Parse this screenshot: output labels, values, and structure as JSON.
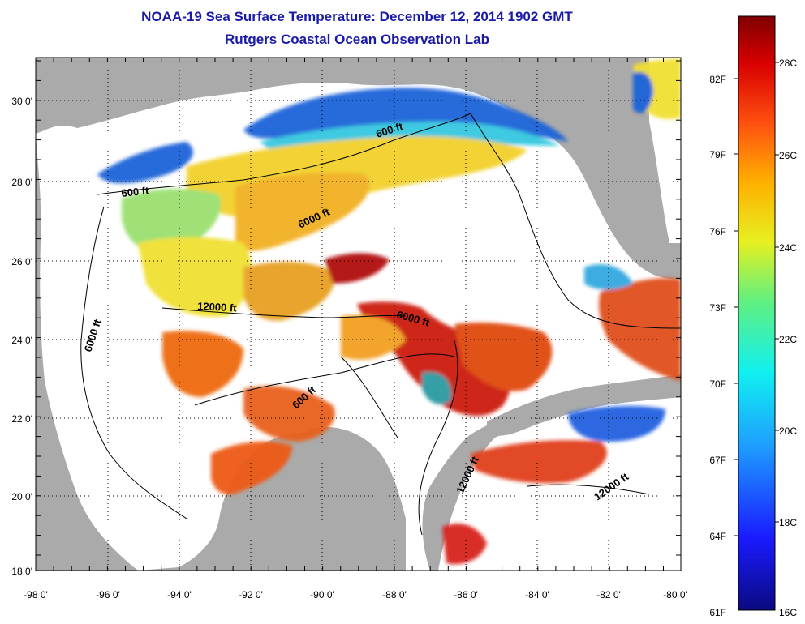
{
  "title": "NOAA-19 Sea Surface Temperature:  December 12, 2014 1902 GMT",
  "subtitle": "Rutgers Coastal Ocean Observation Lab",
  "longitude_ticks": [
    "-98 0'",
    "-96 0'",
    "-94 0'",
    "-92 0'",
    "-90 0'",
    "-88 0'",
    "-86 0'",
    "-84 0'",
    "-82 0'",
    "-80 0'"
  ],
  "latitude_ticks": [
    "30 0'",
    "28 0'",
    "26 0'",
    "24 0'",
    "22 0'",
    "20 0'",
    "18 0'"
  ],
  "contour_labels": [
    "600 ft",
    "600 ft",
    "6000 ft",
    "6000 ft",
    "12000 ft",
    "6000 ft",
    "600 ft",
    "12000 ft",
    "12000 ft"
  ],
  "colorbar": {
    "fahrenheit": [
      "82F",
      "79F",
      "76F",
      "73F",
      "70F",
      "67F",
      "64F",
      "61F"
    ],
    "celsius": [
      "28C",
      "26C",
      "24C",
      "22C",
      "20C",
      "18C",
      "16C"
    ],
    "min_c": 16,
    "max_c": 29.5
  },
  "colors": {
    "land": "#aaaaaa",
    "water_nodata": "#ffffff",
    "title": "#1a1aa8",
    "sst_warm": "#cc1a10",
    "sst_mid": "#f2c31e",
    "sst_cool": "#1e64d8"
  }
}
